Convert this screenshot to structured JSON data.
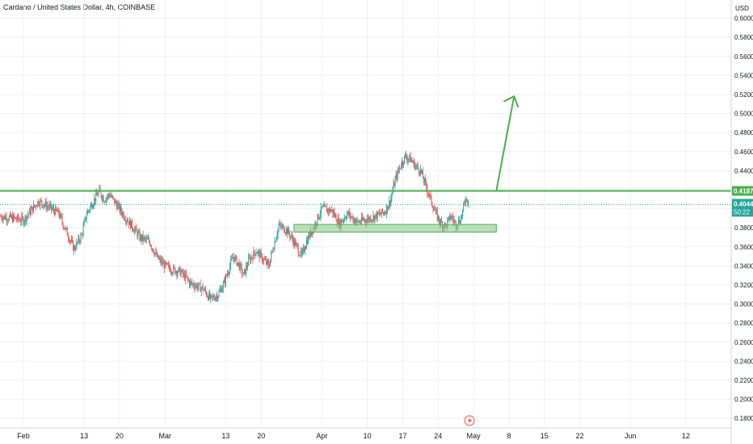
{
  "header": {
    "title": "Cardano / United States Dollar, 4h, COINBASE",
    "currency": "USD"
  },
  "colors": {
    "up": "#26a69a",
    "down": "#ef5350",
    "drawing": "#4caf50",
    "zone_fill": "#81c784",
    "price_badge": "#26a69a",
    "grid": "#eef0f3"
  },
  "icons": {
    "event_marker": "lightning-bolt-icon"
  },
  "chart_data": {
    "type": "candlestick",
    "title": "Cardano / United States Dollar, 4h, COINBASE",
    "ylabel": "USD",
    "ylim": [
      0.17,
      0.61
    ],
    "y_ticks": [
      "0.6000",
      "0.5800",
      "0.5600",
      "0.5400",
      "0.5200",
      "0.5000",
      "0.4800",
      "0.4600",
      "0.4400",
      "0.4200",
      "0.4000",
      "0.3800",
      "0.3600",
      "0.3400",
      "0.3200",
      "0.3000",
      "0.2800",
      "0.2600",
      "0.2400",
      "0.2200",
      "0.2000",
      "0.1800"
    ],
    "x_ticks": [
      "Feb",
      "13",
      "20",
      "Mar",
      "13",
      "20",
      "Apr",
      "10",
      "17",
      "24",
      "May",
      "8",
      "15",
      "22",
      "Jun",
      "12"
    ],
    "x_tick_days": [
      0,
      12,
      19,
      28,
      40,
      47,
      59,
      68,
      75,
      82,
      89,
      96,
      103,
      110,
      120,
      131
    ],
    "price_path": [
      [
        -4.5,
        0.392
      ],
      [
        0,
        0.388
      ],
      [
        3,
        0.408
      ],
      [
        5,
        0.402
      ],
      [
        7,
        0.395
      ],
      [
        8,
        0.382
      ],
      [
        10,
        0.358
      ],
      [
        11.5,
        0.372
      ],
      [
        12.5,
        0.395
      ],
      [
        13.5,
        0.405
      ],
      [
        15,
        0.418
      ],
      [
        16,
        0.41
      ],
      [
        17,
        0.415
      ],
      [
        19,
        0.4
      ],
      [
        20,
        0.392
      ],
      [
        22,
        0.378
      ],
      [
        23,
        0.37
      ],
      [
        25,
        0.365
      ],
      [
        26.5,
        0.348
      ],
      [
        28,
        0.34
      ],
      [
        29.5,
        0.336
      ],
      [
        31,
        0.334
      ],
      [
        33,
        0.322
      ],
      [
        35.5,
        0.316
      ],
      [
        37,
        0.305
      ],
      [
        38.5,
        0.31
      ],
      [
        39.5,
        0.32
      ],
      [
        40.5,
        0.335
      ],
      [
        41.5,
        0.35
      ],
      [
        42.5,
        0.342
      ],
      [
        43.5,
        0.33
      ],
      [
        44.5,
        0.345
      ],
      [
        46,
        0.356
      ],
      [
        47.5,
        0.346
      ],
      [
        48.5,
        0.34
      ],
      [
        49.5,
        0.362
      ],
      [
        50.5,
        0.382
      ],
      [
        52,
        0.378
      ],
      [
        53,
        0.37
      ],
      [
        54,
        0.36
      ],
      [
        55,
        0.35
      ],
      [
        56,
        0.366
      ],
      [
        57.5,
        0.382
      ],
      [
        59,
        0.4
      ],
      [
        61,
        0.398
      ],
      [
        62.5,
        0.384
      ],
      [
        64,
        0.395
      ],
      [
        66,
        0.386
      ],
      [
        68,
        0.389
      ],
      [
        70,
        0.393
      ],
      [
        71.5,
        0.397
      ],
      [
        72.5,
        0.408
      ],
      [
        73.5,
        0.43
      ],
      [
        74.5,
        0.445
      ],
      [
        75.5,
        0.455
      ],
      [
        76.5,
        0.452
      ],
      [
        77.5,
        0.445
      ],
      [
        78.5,
        0.44
      ],
      [
        79.5,
        0.425
      ],
      [
        80.5,
        0.41
      ],
      [
        81.5,
        0.395
      ],
      [
        82.5,
        0.385
      ],
      [
        83.5,
        0.382
      ],
      [
        84.5,
        0.392
      ],
      [
        85.5,
        0.384
      ],
      [
        86.5,
        0.39
      ],
      [
        87.5,
        0.412
      ],
      [
        88,
        0.404
      ]
    ],
    "resistance_level": 0.4187,
    "support_zone": [
      0.3755,
      0.3835
    ],
    "support_zone_days": [
      53.5,
      93.5
    ],
    "projection_arrow": {
      "from": [
        93.5,
        0.4187
      ],
      "to": [
        97,
        0.518
      ]
    },
    "last_price": "0.4044",
    "countdown": "50:22",
    "resistance_label": "0.4187"
  }
}
